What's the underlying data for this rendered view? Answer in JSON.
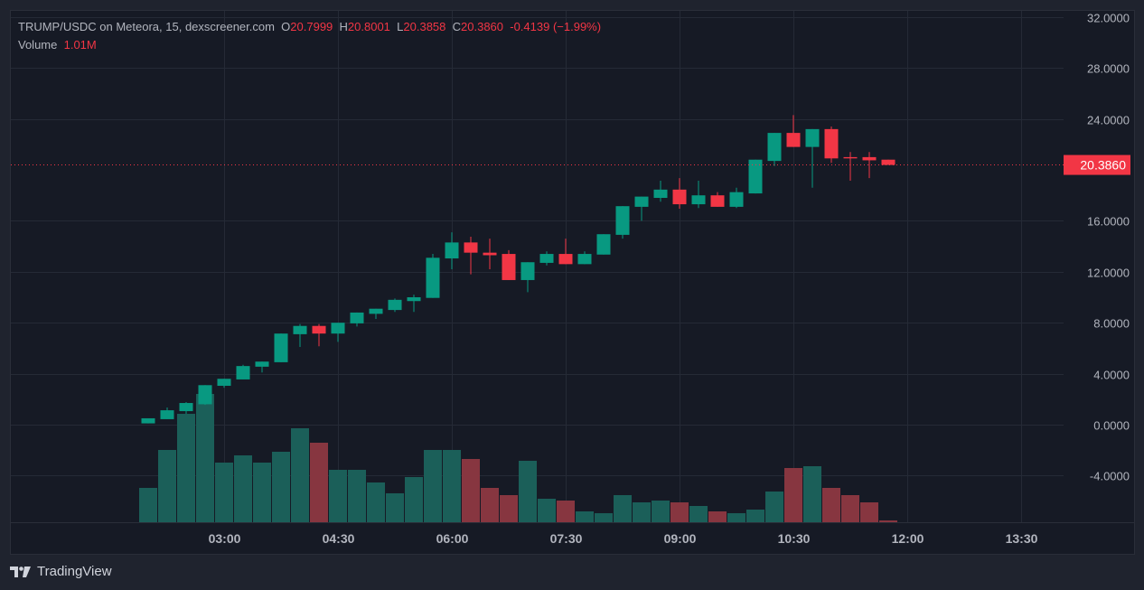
{
  "header": {
    "symbol": "TRUMP/USDC on Meteora, 15, dexscreener.com",
    "open_label": "O",
    "open": "20.7999",
    "high_label": "H",
    "high": "20.8001",
    "low_label": "L",
    "low": "20.3858",
    "close_label": "C",
    "close": "20.3860",
    "change": "-0.4139 (−1.99%)",
    "volume_label": "Volume",
    "volume": "1.01M"
  },
  "brand": {
    "name": "TradingView"
  },
  "colors": {
    "up": "#089981",
    "down": "#f23645",
    "volume_up": "#1b5f59",
    "volume_down": "#873640",
    "background": "#161a25",
    "grid": "#252a36"
  },
  "chart_data": {
    "type": "candlestick",
    "interval_minutes": 15,
    "ylim": [
      -7.6,
      32
    ],
    "grid": true,
    "y_ticks": [
      "32.0000",
      "28.0000",
      "24.0000",
      "16.0000",
      "12.0000",
      "8.0000",
      "4.0000",
      "0.0000",
      "-4.0000"
    ],
    "y_tick_values": [
      32,
      28,
      24,
      16,
      12,
      8,
      4,
      0,
      -4
    ],
    "x_ticks": [
      "03:00",
      "04:30",
      "06:00",
      "07:30",
      "09:00",
      "10:30",
      "12:00",
      "13:30"
    ],
    "last_price_label": "20.3860",
    "last_price": 20.386,
    "columns": [
      "time",
      "open",
      "high",
      "low",
      "close",
      "volume_M"
    ],
    "candles": [
      [
        "02:00",
        0.1,
        0.5,
        0.1,
        0.5,
        19
      ],
      [
        "02:15",
        0.43,
        1.35,
        0.43,
        1.13,
        40
      ],
      [
        "02:30",
        1.06,
        1.77,
        0.85,
        1.7,
        60
      ],
      [
        "02:45",
        1.6,
        3.1,
        1.55,
        3.1,
        71
      ],
      [
        "03:00",
        3.05,
        3.6,
        2.9,
        3.6,
        33
      ],
      [
        "03:15",
        3.55,
        4.7,
        3.55,
        4.6,
        37
      ],
      [
        "03:30",
        4.55,
        4.95,
        4.1,
        4.95,
        33
      ],
      [
        "03:45",
        4.9,
        7.15,
        4.9,
        7.15,
        39
      ],
      [
        "04:00",
        7.1,
        7.9,
        6.1,
        7.75,
        52
      ],
      [
        "04:15",
        7.75,
        7.9,
        6.15,
        7.15,
        44
      ],
      [
        "04:30",
        7.15,
        8.0,
        6.5,
        8.0,
        29
      ],
      [
        "04:45",
        7.95,
        8.8,
        7.7,
        8.8,
        29
      ],
      [
        "05:00",
        8.7,
        9.1,
        8.3,
        9.1,
        22
      ],
      [
        "05:15",
        9.0,
        9.9,
        8.85,
        9.8,
        16
      ],
      [
        "05:30",
        9.7,
        10.2,
        8.85,
        10.0,
        25
      ],
      [
        "05:45",
        9.95,
        13.4,
        9.95,
        13.1,
        40
      ],
      [
        "06:00",
        13.05,
        15.1,
        12.2,
        14.3,
        40
      ],
      [
        "06:15",
        14.3,
        14.75,
        11.8,
        13.5,
        35
      ],
      [
        "06:30",
        13.5,
        14.6,
        12.2,
        13.3,
        19
      ],
      [
        "06:45",
        13.4,
        13.7,
        11.35,
        11.35,
        15
      ],
      [
        "07:00",
        11.35,
        12.75,
        10.4,
        12.75,
        34
      ],
      [
        "07:15",
        12.7,
        13.6,
        12.5,
        13.4,
        13
      ],
      [
        "07:30",
        13.4,
        14.6,
        12.6,
        12.6,
        12
      ],
      [
        "07:45",
        12.6,
        13.6,
        12.6,
        13.4,
        6
      ],
      [
        "08:00",
        13.35,
        14.95,
        13.35,
        14.95,
        5
      ],
      [
        "08:15",
        14.9,
        17.15,
        14.6,
        17.15,
        15
      ],
      [
        "08:30",
        17.1,
        17.9,
        16.0,
        17.9,
        11
      ],
      [
        "08:45",
        17.8,
        19.15,
        17.5,
        18.45,
        12
      ],
      [
        "09:00",
        18.45,
        19.35,
        16.95,
        17.3,
        11
      ],
      [
        "09:15",
        17.3,
        19.15,
        17.0,
        18.0,
        9
      ],
      [
        "09:30",
        18.0,
        18.25,
        17.1,
        17.1,
        6
      ],
      [
        "09:45",
        17.1,
        18.6,
        17.0,
        18.25,
        5
      ],
      [
        "10:00",
        18.15,
        20.8,
        18.15,
        20.8,
        7
      ],
      [
        "10:15",
        20.7,
        22.9,
        20.3,
        22.9,
        17
      ],
      [
        "10:30",
        22.9,
        24.3,
        21.8,
        21.8,
        30
      ],
      [
        "10:45",
        21.8,
        23.2,
        18.6,
        23.2,
        31
      ],
      [
        "11:00",
        23.2,
        23.4,
        20.55,
        20.9,
        19
      ],
      [
        "11:15",
        21.0,
        21.4,
        19.15,
        20.9,
        15
      ],
      [
        "11:30",
        21.0,
        21.4,
        19.35,
        20.75,
        11
      ],
      [
        "11:45",
        20.7999,
        20.8001,
        20.3858,
        20.386,
        1.01
      ]
    ]
  }
}
